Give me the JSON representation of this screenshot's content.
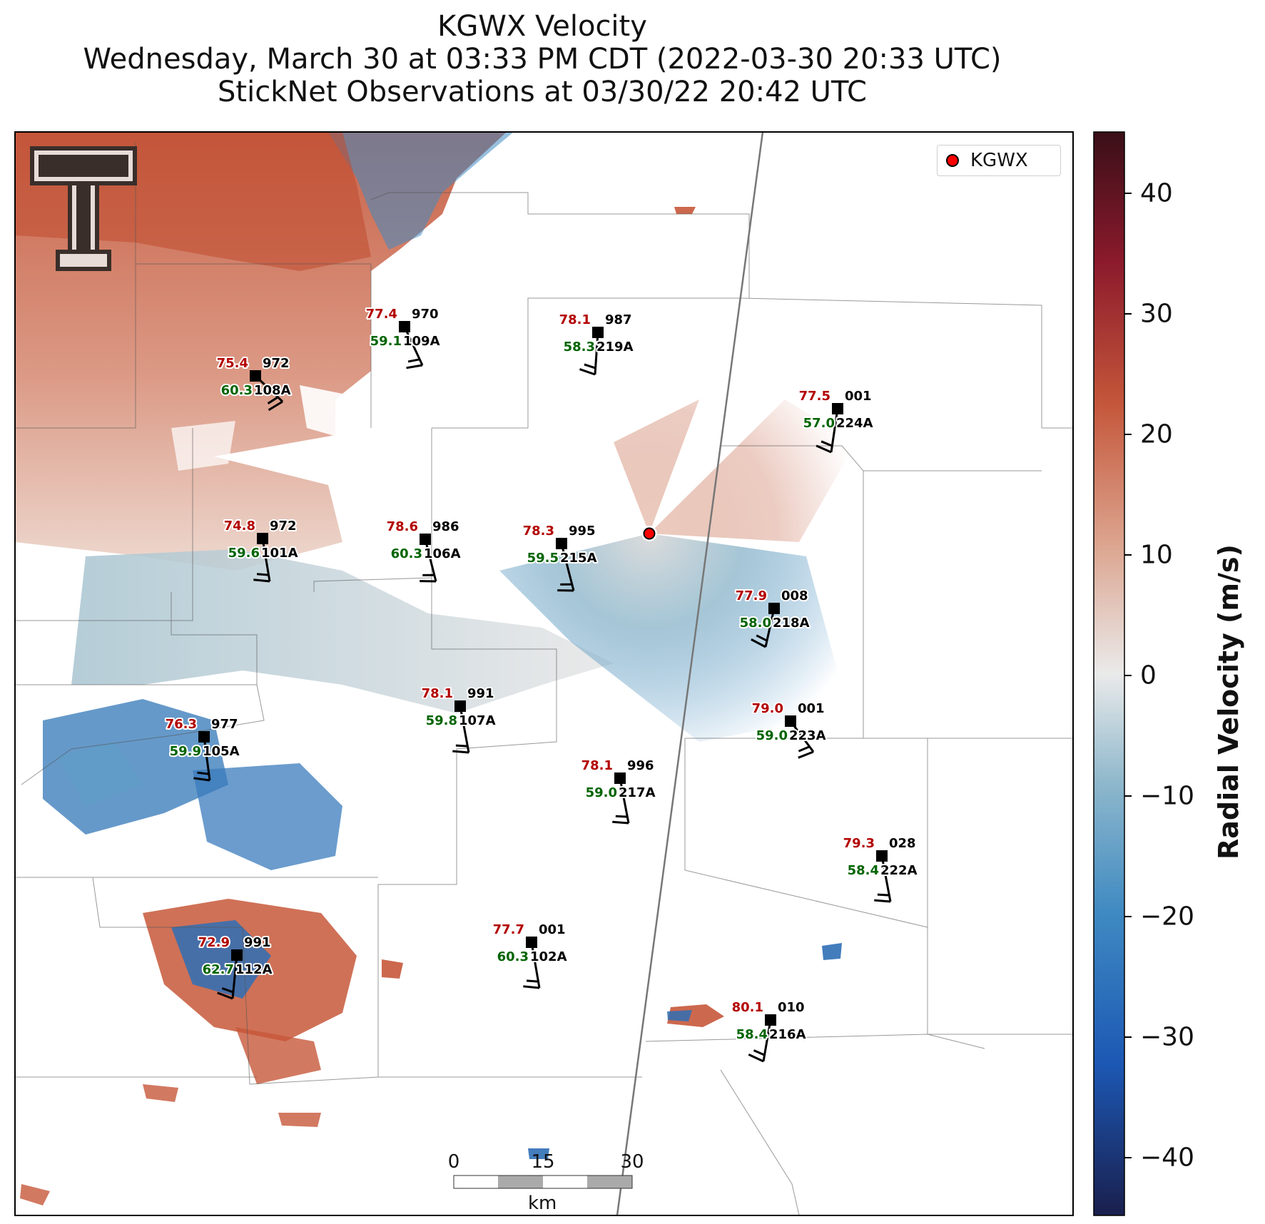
{
  "titles": {
    "line1": "KGWX Velocity",
    "line2": "Wednesday, March 30 at 03:33 PM CDT (2022-03-30 20:33 UTC)",
    "line3": "StickNet Observations at 03/30/22 20:42 UTC"
  },
  "legend": {
    "label": "KGWX",
    "marker_color": "#ff0000"
  },
  "colorbar": {
    "label": "Radial Velocity (m/s)",
    "range": [
      -45,
      45
    ],
    "ticks": [
      "40",
      "30",
      "20",
      "10",
      "0",
      "−10",
      "−20",
      "−30",
      "−40"
    ],
    "colors": [
      "#1a1f4d",
      "#1c58b4",
      "#3f8ac2",
      "#8fb8cc",
      "#eaeaea",
      "#dca48e",
      "#c4563a",
      "#8b1a2c",
      "#3a0f18"
    ]
  },
  "scale_bar": {
    "labels": [
      "0",
      "15",
      "30"
    ],
    "unit": "km"
  },
  "logo": {
    "text": "T"
  },
  "stations": [
    {
      "temp": "77.4",
      "pres": "970",
      "dew": "59.1",
      "id": "109A"
    },
    {
      "temp": "78.1",
      "pres": "987",
      "dew": "58.3",
      "id": "219A"
    },
    {
      "temp": "75.4",
      "pres": "972",
      "dew": "60.3",
      "id": "108A"
    },
    {
      "temp": "77.5",
      "pres": "001",
      "dew": "57.0",
      "id": "224A"
    },
    {
      "temp": "74.8",
      "pres": "972",
      "dew": "59.6",
      "id": "101A"
    },
    {
      "temp": "78.6",
      "pres": "986",
      "dew": "60.3",
      "id": "106A"
    },
    {
      "temp": "78.3",
      "pres": "995",
      "dew": "59.5",
      "id": "215A"
    },
    {
      "temp": "77.9",
      "pres": "008",
      "dew": "58.0",
      "id": "218A"
    },
    {
      "temp": "78.1",
      "pres": "991",
      "dew": "59.8",
      "id": "107A"
    },
    {
      "temp": "79.0",
      "pres": "001",
      "dew": "59.0",
      "id": "223A"
    },
    {
      "temp": "76.3",
      "pres": "977",
      "dew": "59.9",
      "id": "105A"
    },
    {
      "temp": "78.1",
      "pres": "996",
      "dew": "59.0",
      "id": "217A"
    },
    {
      "temp": "79.3",
      "pres": "028",
      "dew": "58.4",
      "id": "222A"
    },
    {
      "temp": "77.7",
      "pres": "001",
      "dew": "60.3",
      "id": "102A"
    },
    {
      "temp": "72.9",
      "pres": "991",
      "dew": "62.7",
      "id": "112A"
    },
    {
      "temp": "80.1",
      "pres": "010",
      "dew": "58.4",
      "id": "216A"
    }
  ]
}
